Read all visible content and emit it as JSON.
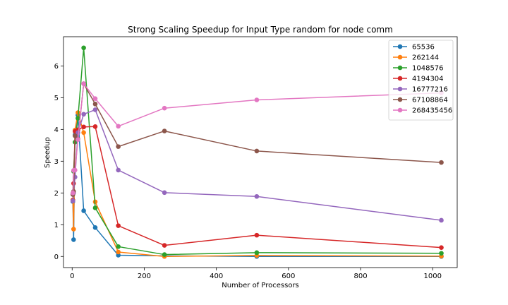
{
  "chart_data": {
    "type": "line",
    "title": "Strong Scaling Speedup for Input Type random for node comm",
    "xlabel": "Number of Processors",
    "ylabel": "Speedup",
    "xlim": [
      -24,
      1068
    ],
    "ylim": [
      -0.35,
      6.92
    ],
    "xticks": [
      0,
      200,
      400,
      600,
      800,
      1000
    ],
    "yticks": [
      0,
      1,
      2,
      3,
      4,
      5,
      6
    ],
    "grid": false,
    "legend_position": "top-right",
    "x": [
      2,
      4,
      8,
      16,
      32,
      64,
      128,
      256,
      512,
      1024
    ],
    "series": [
      {
        "name": "65536",
        "color": "#1f77b4",
        "values": [
          1.73,
          0.53,
          3.83,
          4.45,
          1.44,
          0.91,
          0.04,
          0.02,
          0.0,
          0.0
        ]
      },
      {
        "name": "262144",
        "color": "#ff7f0e",
        "values": [
          1.78,
          0.86,
          3.98,
          4.53,
          3.9,
          1.72,
          0.14,
          0.0,
          0.03,
          0.01
        ]
      },
      {
        "name": "1048576",
        "color": "#2ca02c",
        "values": [
          1.98,
          2.68,
          3.6,
          4.35,
          6.57,
          1.53,
          0.31,
          0.06,
          0.12,
          0.1
        ]
      },
      {
        "name": "4194304",
        "color": "#d62728",
        "values": [
          1.77,
          2.3,
          3.94,
          3.99,
          4.08,
          4.09,
          0.97,
          0.35,
          0.67,
          0.28
        ]
      },
      {
        "name": "16777216",
        "color": "#9467bd",
        "values": [
          1.75,
          2.0,
          2.5,
          3.9,
          4.48,
          4.62,
          2.72,
          2.01,
          1.89,
          1.14
        ]
      },
      {
        "name": "67108864",
        "color": "#8c564b",
        "values": [
          1.95,
          2.05,
          3.8,
          3.7,
          5.44,
          4.8,
          3.46,
          3.95,
          3.32,
          2.96
        ]
      },
      {
        "name": "268435456",
        "color": "#e377c2",
        "values": [
          2.0,
          2.71,
          2.72,
          3.68,
          5.44,
          4.97,
          4.1,
          4.67,
          4.93,
          5.15
        ]
      }
    ]
  }
}
